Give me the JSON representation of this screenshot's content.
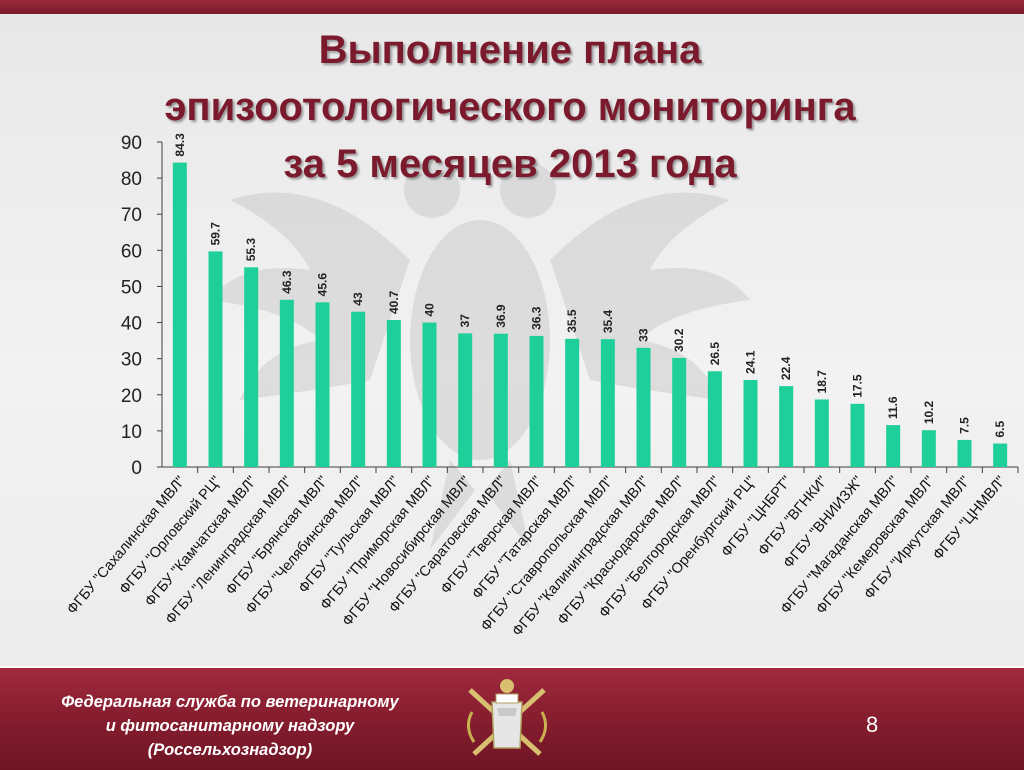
{
  "slide": {
    "title_lines": [
      "Выполнение плана",
      "эпизоотологического мониторинга",
      "за 5 месяцев 2013 года"
    ],
    "footer_lines": [
      "Федеральная служба по ветеринарному",
      "и фитосанитарному надзору",
      "(Россельхознадзор)"
    ],
    "page_number": "8",
    "logo_icon": "rosselkhoznadzor-emblem-icon",
    "background_icon": "double-headed-eagle-icon"
  },
  "colors": {
    "bar": "#1fcf9a",
    "title": "#7b1a2c",
    "footer": "#8a1f31",
    "axis": "#404040"
  },
  "chart_data": {
    "type": "bar",
    "title": "",
    "xlabel": "",
    "ylabel": "",
    "ylim": [
      0,
      90
    ],
    "yticks": [
      0,
      10,
      20,
      30,
      40,
      50,
      60,
      70,
      80,
      90
    ],
    "grid": false,
    "legend": "none",
    "categories": [
      "ФГБУ \"Сахалинская МВЛ\"",
      "ФГБУ \"Орловский РЦ\"",
      "ФГБУ \"Камчатская МВЛ\"",
      "ФГБУ \"Ленинградская МВЛ\"",
      "ФГБУ \"Брянская МВЛ\"",
      "ФГБУ \"Челябинская МВЛ\"",
      "ФГБУ \"Тульская МВЛ\"",
      "ФГБУ \"Приморская МВЛ\"",
      "ФГБУ \"Новосибирская МВЛ\"",
      "ФГБУ \"Саратовская МВЛ\"",
      "ФГБУ \"Тверская МВЛ\"",
      "ФГБУ \"Татарская МВЛ\"",
      "ФГБУ \"Ставропольская МВЛ\"",
      "ФГБУ \"Калининградская МВЛ\"",
      "ФГБУ \"Краснодарская МВЛ\"",
      "ФГБУ \"Белгородская МВЛ\"",
      "ФГБУ \"Оренбургский РЦ\"",
      "ФГБУ \"ЦНБРТ\"",
      "ФГБУ \"ВГНКИ\"",
      "ФГБУ \"ВНИИЗЖ\"",
      "ФГБУ \"Магаданская МВЛ\"",
      "ФГБУ \"Кемеровская МВЛ\"",
      "ФГБУ \"Иркутская МВЛ\"",
      "ФГБУ \"ЦНМВЛ\""
    ],
    "values": [
      84.3,
      59.7,
      55.3,
      46.3,
      45.6,
      43,
      40.7,
      40,
      37,
      36.9,
      36.3,
      35.5,
      35.4,
      33,
      30.2,
      26.5,
      24.1,
      22.4,
      18.7,
      17.5,
      11.6,
      10.2,
      7.5,
      6.5
    ],
    "value_labels": [
      "84.3",
      "59.7",
      "55.3",
      "46.3",
      "45.6",
      "43",
      "40.7",
      "40",
      "37",
      "36.9",
      "36.3",
      "35.5",
      "35.4",
      "33",
      "30.2",
      "26.5",
      "24.1",
      "22.4",
      "18.7",
      "17.5",
      "11.6",
      "10.2",
      "7.5",
      "6.5"
    ]
  }
}
